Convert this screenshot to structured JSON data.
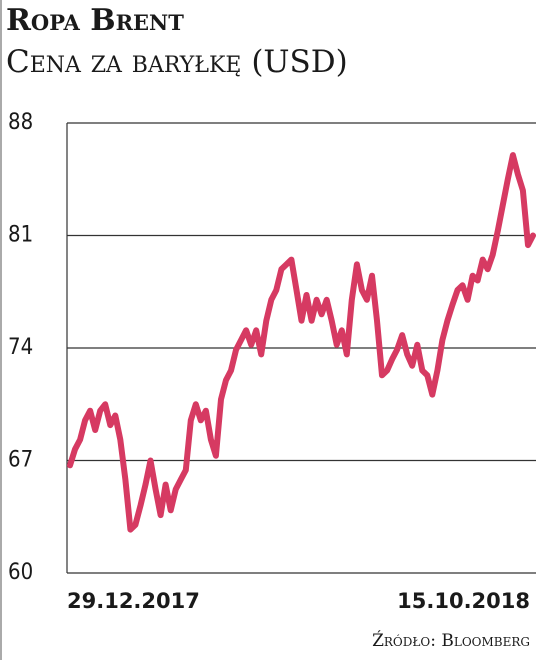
{
  "chart_data": {
    "type": "line",
    "title": "Ropa Brent",
    "subtitle": "Cena za baryłkę (USD)",
    "source": "Źródło: Bloomberg",
    "categories": [
      "29.12.2017",
      null,
      null,
      null,
      null,
      null,
      null,
      null,
      null,
      null,
      null,
      null,
      null,
      null,
      null,
      null,
      null,
      null,
      null,
      null,
      null,
      null,
      null,
      null,
      null,
      null,
      null,
      null,
      null,
      null,
      null,
      null,
      null,
      null,
      null,
      null,
      null,
      null,
      null,
      null,
      null,
      null,
      null,
      null,
      null,
      null,
      null,
      null,
      null,
      null,
      null,
      null,
      null,
      null,
      null,
      null,
      null,
      null,
      null,
      null,
      null,
      null,
      null,
      null,
      null,
      null,
      null,
      null,
      null,
      null,
      null,
      null,
      null,
      null,
      null,
      null,
      null,
      null,
      null,
      null,
      null,
      null,
      null,
      null,
      null,
      null,
      null,
      null,
      null,
      null,
      null,
      null,
      "15.10.2018"
    ],
    "series": [
      {
        "name": "Brent",
        "color": "#d63a62",
        "values": [
          66.7,
          67.7,
          68.3,
          69.5,
          70.1,
          68.9,
          70.1,
          70.5,
          69.2,
          69.8,
          68.3,
          65.8,
          62.7,
          63.0,
          64.2,
          65.5,
          67.0,
          65.2,
          63.6,
          65.5,
          63.9,
          65.2,
          65.8,
          66.4,
          69.5,
          70.5,
          69.5,
          70.1,
          68.3,
          67.3,
          70.8,
          72.0,
          72.6,
          73.9,
          74.5,
          75.1,
          74.2,
          75.1,
          73.6,
          75.7,
          77.0,
          77.6,
          78.9,
          79.2,
          79.5,
          77.6,
          75.7,
          77.3,
          75.7,
          77.0,
          76.1,
          77.0,
          75.7,
          74.2,
          75.1,
          73.6,
          77.0,
          79.2,
          77.6,
          77.0,
          78.5,
          75.7,
          72.3,
          72.6,
          73.3,
          73.9,
          74.8,
          73.6,
          72.9,
          74.2,
          72.6,
          72.3,
          71.1,
          72.6,
          74.5,
          75.7,
          76.7,
          77.6,
          77.9,
          77.0,
          78.5,
          78.2,
          79.5,
          78.9,
          79.8,
          81.3,
          82.9,
          84.5,
          86.0,
          84.8,
          83.8,
          80.4,
          81.0
        ]
      }
    ],
    "ylim": [
      60,
      88
    ],
    "yticks": [
      60,
      67,
      74,
      81,
      88
    ],
    "grid": true
  }
}
